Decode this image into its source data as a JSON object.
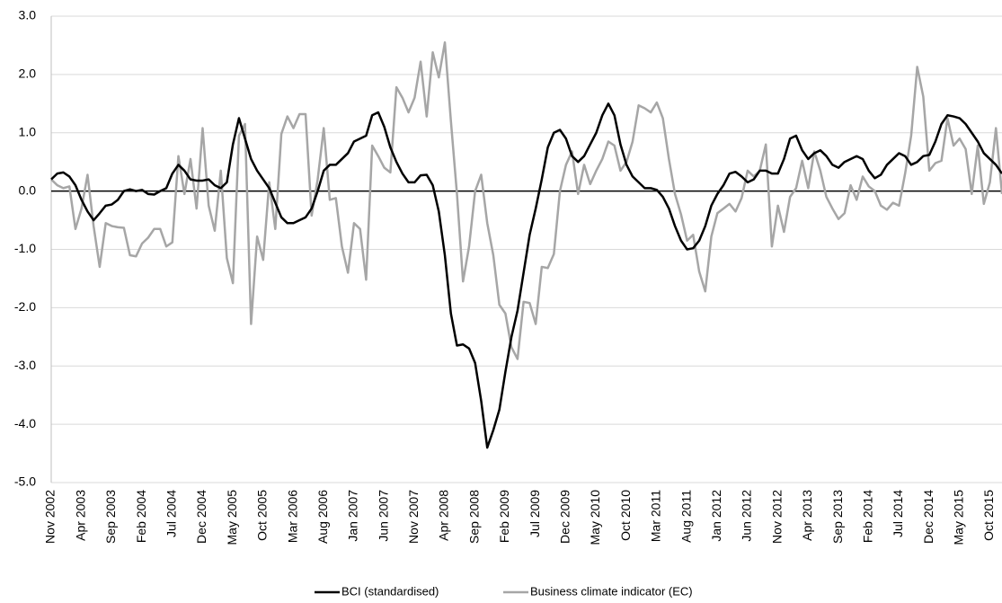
{
  "chart_data": {
    "type": "line",
    "categories": [
      "Nov 2002",
      null,
      null,
      null,
      null,
      "Apr 2003",
      null,
      null,
      null,
      null,
      "Sep 2003",
      null,
      null,
      null,
      null,
      "Feb 2004",
      null,
      null,
      null,
      null,
      "Jul 2004",
      null,
      null,
      null,
      null,
      "Dec 2004",
      null,
      null,
      null,
      null,
      "May 2005",
      null,
      null,
      null,
      null,
      "Oct 2005",
      null,
      null,
      null,
      null,
      "Mar 2006",
      null,
      null,
      null,
      null,
      "Aug 2006",
      null,
      null,
      null,
      null,
      "Jan 2007",
      null,
      null,
      null,
      null,
      "Jun 2007",
      null,
      null,
      null,
      null,
      "Nov 2007",
      null,
      null,
      null,
      null,
      "Apr 2008",
      null,
      null,
      null,
      null,
      "Sep 2008",
      null,
      null,
      null,
      null,
      "Feb 2009",
      null,
      null,
      null,
      null,
      "Jul 2009",
      null,
      null,
      null,
      null,
      "Dec 2009",
      null,
      null,
      null,
      null,
      "May 2010",
      null,
      null,
      null,
      null,
      "Oct 2010",
      null,
      null,
      null,
      null,
      "Mar 2011",
      null,
      null,
      null,
      null,
      "Aug 2011",
      null,
      null,
      null,
      null,
      "Jan 2012",
      null,
      null,
      null,
      null,
      "Jun 2012",
      null,
      null,
      null,
      null,
      "Nov 2012",
      null,
      null,
      null,
      null,
      "Apr 2013",
      null,
      null,
      null,
      null,
      "Sep 2013",
      null,
      null,
      null,
      null,
      "Feb 2014",
      null,
      null,
      null,
      null,
      "Jul 2014",
      null,
      null,
      null,
      null,
      "Dec 2014",
      null,
      null,
      null,
      null,
      "May 2015",
      null,
      null,
      null,
      null,
      "Oct 2015",
      null,
      null
    ],
    "series": [
      {
        "name": "BCI (standardised)",
        "color": "#000000",
        "values": [
          0.2,
          0.3,
          0.32,
          0.25,
          0.1,
          -0.15,
          -0.35,
          -0.5,
          -0.38,
          -0.25,
          -0.23,
          -0.15,
          0.0,
          0.03,
          0.0,
          0.02,
          -0.05,
          -0.06,
          0.0,
          0.05,
          0.3,
          0.45,
          0.35,
          0.2,
          0.18,
          0.18,
          0.2,
          0.1,
          0.05,
          0.15,
          0.8,
          1.25,
          0.9,
          0.55,
          0.35,
          0.2,
          0.05,
          -0.2,
          -0.45,
          -0.55,
          -0.55,
          -0.5,
          -0.45,
          -0.3,
          0.0,
          0.35,
          0.45,
          0.45,
          0.55,
          0.65,
          0.85,
          0.9,
          0.95,
          1.3,
          1.35,
          1.1,
          0.75,
          0.5,
          0.3,
          0.15,
          0.15,
          0.27,
          0.28,
          0.1,
          -0.35,
          -1.1,
          -2.1,
          -2.65,
          -2.63,
          -2.7,
          -2.95,
          -3.6,
          -4.4,
          -4.1,
          -3.75,
          -3.1,
          -2.5,
          -2.05,
          -1.4,
          -0.75,
          -0.3,
          0.2,
          0.75,
          1.0,
          1.05,
          0.9,
          0.6,
          0.5,
          0.6,
          0.8,
          1.0,
          1.3,
          1.5,
          1.3,
          0.8,
          0.45,
          0.25,
          0.15,
          0.05,
          0.05,
          0.02,
          -0.1,
          -0.3,
          -0.6,
          -0.85,
          -1.0,
          -0.98,
          -0.85,
          -0.6,
          -0.25,
          -0.05,
          0.1,
          0.3,
          0.33,
          0.25,
          0.15,
          0.2,
          0.35,
          0.35,
          0.3,
          0.3,
          0.55,
          0.9,
          0.95,
          0.7,
          0.55,
          0.65,
          0.7,
          0.6,
          0.45,
          0.4,
          0.5,
          0.55,
          0.6,
          0.55,
          0.35,
          0.22,
          0.28,
          0.45,
          0.55,
          0.65,
          0.6,
          0.45,
          0.5,
          0.6,
          0.62,
          0.85,
          1.15,
          1.3,
          1.28,
          1.25,
          1.15,
          1.0,
          0.85,
          0.65,
          0.55,
          0.45,
          0.3
        ]
      },
      {
        "name": "Business climate indicator (EC)",
        "color": "#a6a6a6",
        "values": [
          0.2,
          0.1,
          0.05,
          0.08,
          -0.65,
          -0.3,
          0.28,
          -0.6,
          -1.3,
          -0.55,
          -0.6,
          -0.62,
          -0.63,
          -1.1,
          -1.12,
          -0.9,
          -0.8,
          -0.65,
          -0.65,
          -0.95,
          -0.88,
          0.6,
          -0.05,
          0.55,
          -0.3,
          1.08,
          -0.25,
          -0.68,
          0.35,
          -1.15,
          -1.58,
          0.95,
          1.15,
          -2.28,
          -0.78,
          -1.18,
          0.15,
          -0.65,
          0.98,
          1.28,
          1.08,
          1.32,
          1.32,
          -0.42,
          0.2,
          1.08,
          -0.15,
          -0.12,
          -0.95,
          -1.4,
          -0.55,
          -0.65,
          -1.52,
          0.78,
          0.6,
          0.4,
          0.32,
          1.78,
          1.6,
          1.35,
          1.6,
          2.22,
          1.28,
          2.38,
          1.95,
          2.55,
          1.2,
          -0.05,
          -1.55,
          -0.95,
          0.0,
          0.28,
          -0.55,
          -1.1,
          -1.95,
          -2.1,
          -2.68,
          -2.88,
          -1.9,
          -1.92,
          -2.28,
          -1.3,
          -1.32,
          -1.08,
          0.0,
          0.45,
          0.68,
          -0.05,
          0.45,
          0.12,
          0.35,
          0.55,
          0.85,
          0.78,
          0.35,
          0.5,
          0.85,
          1.47,
          1.42,
          1.35,
          1.52,
          1.25,
          0.55,
          -0.05,
          -0.4,
          -0.85,
          -0.75,
          -1.38,
          -1.72,
          -0.78,
          -0.38,
          -0.3,
          -0.22,
          -0.35,
          -0.12,
          0.35,
          0.25,
          0.35,
          0.8,
          -0.95,
          -0.25,
          -0.7,
          -0.1,
          0.05,
          0.52,
          0.05,
          0.68,
          0.35,
          -0.1,
          -0.3,
          -0.48,
          -0.38,
          0.1,
          -0.15,
          0.25,
          0.08,
          0.0,
          -0.25,
          -0.32,
          -0.2,
          -0.25,
          0.3,
          0.95,
          2.13,
          1.62,
          0.35,
          0.48,
          0.52,
          1.25,
          0.78,
          0.9,
          0.72,
          -0.05,
          0.78,
          -0.22,
          0.15,
          1.08,
          -0.05
        ]
      }
    ],
    "ylim": [
      -5,
      3
    ],
    "yticks": [
      {
        "value": -5,
        "label": "-5.0"
      },
      {
        "value": -4,
        "label": "-4.0"
      },
      {
        "value": -3,
        "label": "-3.0"
      },
      {
        "value": -2,
        "label": "-2.0"
      },
      {
        "value": -1,
        "label": "-1.0"
      },
      {
        "value": 0,
        "label": "0.0"
      },
      {
        "value": 1,
        "label": "1.0"
      },
      {
        "value": 2,
        "label": "2.0"
      },
      {
        "value": 3,
        "label": "3.0"
      }
    ],
    "grid": true,
    "legend": "bottom"
  }
}
